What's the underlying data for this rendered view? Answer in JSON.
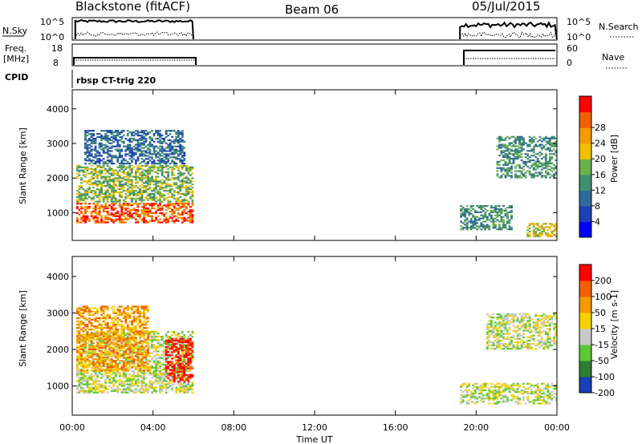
{
  "header": {
    "site": "Blackstone (fitACF)",
    "beam": "Beam 06",
    "date": "05/Jul/2015"
  },
  "status_labels": {
    "nsky": "N.Sky",
    "nsky_ticks": [
      "10^5",
      "10^0"
    ],
    "freq": "Freq.",
    "freq_unit": "[MHz]",
    "freq_ticks": [
      "18",
      "8"
    ],
    "cpid": "CPID",
    "cpid_value": "rbsp CT-trig 220",
    "nsearch": "N.Search",
    "nsearch_ticks": [
      "10^5",
      "10^0"
    ],
    "nave": "Nave",
    "nave_ticks": [
      "60",
      "0"
    ]
  },
  "chart_data": [
    {
      "type": "heatmap",
      "panel": "power",
      "ylabel": "Slant Range [km]",
      "ylim": [
        200,
        4550
      ],
      "yticks": [
        1000,
        2000,
        3000,
        4000
      ],
      "xlim": [
        0,
        24
      ],
      "colorbar": {
        "label": "Power [dB]",
        "ticks": [
          "4",
          "8",
          "12",
          "16",
          "20",
          "24",
          "28"
        ],
        "colors": [
          "#0000ff",
          "#1e40b4",
          "#2e6b98",
          "#3f8f70",
          "#6ab04c",
          "#f0c000",
          "#f59a00",
          "#f06000",
          "#ff0000"
        ]
      },
      "regions": [
        {
          "t": [
            0.2,
            6.0
          ],
          "range": [
            700,
            1300
          ],
          "level": 7
        },
        {
          "t": [
            0.2,
            6.0
          ],
          "range": [
            1300,
            2400
          ],
          "level": 4
        },
        {
          "t": [
            0.6,
            5.6
          ],
          "range": [
            2400,
            3400
          ],
          "level": 2
        },
        {
          "t": [
            19.2,
            21.8
          ],
          "range": [
            500,
            1200
          ],
          "level": 3
        },
        {
          "t": [
            21.0,
            24.0
          ],
          "range": [
            2000,
            3200
          ],
          "level": 3
        },
        {
          "t": [
            22.5,
            24.0
          ],
          "range": [
            300,
            700
          ],
          "level": 5
        }
      ]
    },
    {
      "type": "heatmap",
      "panel": "velocity",
      "ylabel": "Slant Range [km]",
      "ylim": [
        200,
        4550
      ],
      "yticks": [
        1000,
        2000,
        3000,
        4000
      ],
      "xlim": [
        0,
        24
      ],
      "xticks": [
        "00:00",
        "04:00",
        "08:00",
        "12:00",
        "16:00",
        "20:00",
        "00:00"
      ],
      "xlabel": "Time UT",
      "colorbar": {
        "label": "Velocity [m s-1]",
        "ticks": [
          "200",
          "100",
          "50",
          "15",
          "-15",
          "-50",
          "-100",
          "-200"
        ],
        "colors": [
          "#1a3fb8",
          "#2e7d32",
          "#5ec83a",
          "#c8c8c8",
          "#f7d000",
          "#f59a00",
          "#f06000",
          "#ff0000"
        ]
      },
      "regions": [
        {
          "t": [
            0.2,
            6.0
          ],
          "range": [
            800,
            2500
          ],
          "level": 3
        },
        {
          "t": [
            0.2,
            3.8
          ],
          "range": [
            1400,
            3200
          ],
          "level": 5
        },
        {
          "t": [
            4.6,
            6.0
          ],
          "range": [
            1100,
            2300
          ],
          "level": 7
        },
        {
          "t": [
            19.2,
            24.0
          ],
          "range": [
            500,
            1100
          ],
          "level": 3
        },
        {
          "t": [
            20.5,
            24.0
          ],
          "range": [
            2000,
            3000
          ],
          "level": 3
        }
      ]
    }
  ]
}
